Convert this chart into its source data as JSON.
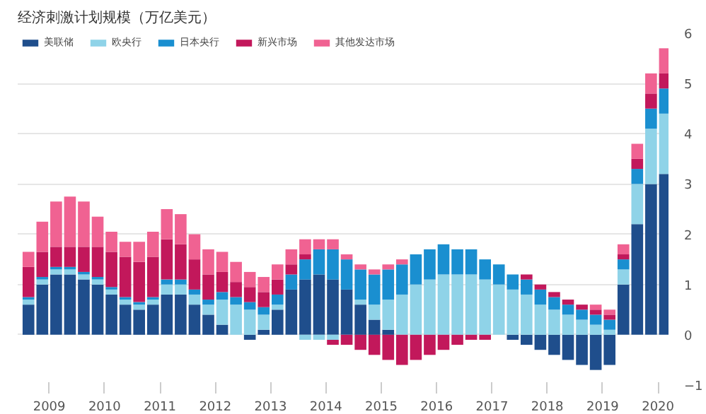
{
  "chart_data": {
    "type": "bar",
    "title": "经济刺激计划规模（万亿美元）",
    "stacked": true,
    "legend": "top left",
    "grid": "y",
    "x": [
      2008.625,
      2008.875,
      2009.125,
      2009.375,
      2009.625,
      2009.875,
      2010.125,
      2010.375,
      2010.625,
      2010.875,
      2011.125,
      2011.375,
      2011.625,
      2011.875,
      2012.125,
      2012.375,
      2012.625,
      2012.875,
      2013.125,
      2013.375,
      2013.625,
      2013.875,
      2014.125,
      2014.375,
      2014.625,
      2014.875,
      2015.125,
      2015.375,
      2015.625,
      2015.875,
      2016.125,
      2016.375,
      2016.625,
      2016.875,
      2017.125,
      2017.375,
      2017.625,
      2017.875,
      2018.125,
      2018.375,
      2018.625,
      2018.875,
      2019.125,
      2019.375,
      2019.625,
      2019.875,
      2020.125
    ],
    "series": [
      {
        "name": "美联储",
        "color": "#1f4e8c",
        "values": [
          0.6,
          1.0,
          1.2,
          1.2,
          1.1,
          1.0,
          0.8,
          0.6,
          0.5,
          0.6,
          0.8,
          0.8,
          0.6,
          0.4,
          0.2,
          0.0,
          -0.1,
          0.1,
          0.5,
          0.9,
          1.1,
          1.2,
          1.1,
          0.9,
          0.6,
          0.3,
          0.1,
          0.0,
          0.0,
          0.0,
          0.0,
          0.0,
          0.0,
          0.0,
          0.0,
          -0.1,
          -0.2,
          -0.3,
          -0.4,
          -0.5,
          -0.6,
          -0.7,
          -0.6,
          1.0,
          2.2,
          3.0,
          3.2
        ]
      },
      {
        "name": "欧央行",
        "color": "#8fd3e8",
        "values": [
          0.1,
          0.1,
          0.1,
          0.1,
          0.1,
          0.1,
          0.1,
          0.1,
          0.1,
          0.1,
          0.2,
          0.2,
          0.2,
          0.2,
          0.5,
          0.6,
          0.5,
          0.3,
          0.1,
          0.0,
          -0.1,
          -0.1,
          -0.1,
          0.0,
          0.1,
          0.3,
          0.6,
          0.8,
          1.0,
          1.1,
          1.2,
          1.2,
          1.2,
          1.1,
          1.0,
          0.9,
          0.8,
          0.6,
          0.5,
          0.4,
          0.3,
          0.2,
          0.1,
          0.3,
          0.8,
          1.1,
          1.2
        ]
      },
      {
        "name": "日本央行",
        "color": "#1a8fd0",
        "values": [
          0.05,
          0.05,
          0.05,
          0.05,
          0.05,
          0.05,
          0.05,
          0.05,
          0.05,
          0.05,
          0.1,
          0.1,
          0.1,
          0.1,
          0.15,
          0.15,
          0.15,
          0.15,
          0.2,
          0.3,
          0.4,
          0.5,
          0.6,
          0.6,
          0.6,
          0.6,
          0.6,
          0.6,
          0.6,
          0.6,
          0.6,
          0.5,
          0.5,
          0.4,
          0.4,
          0.3,
          0.3,
          0.3,
          0.25,
          0.2,
          0.2,
          0.2,
          0.2,
          0.2,
          0.3,
          0.4,
          0.5
        ]
      },
      {
        "name": "新兴市场",
        "color": "#c2185b",
        "values": [
          0.6,
          0.5,
          0.4,
          0.4,
          0.5,
          0.6,
          0.7,
          0.8,
          0.8,
          0.8,
          0.8,
          0.7,
          0.6,
          0.5,
          0.4,
          0.3,
          0.3,
          0.3,
          0.3,
          0.2,
          0.1,
          0.0,
          -0.1,
          -0.2,
          -0.3,
          -0.4,
          -0.5,
          -0.6,
          -0.5,
          -0.4,
          -0.3,
          -0.2,
          -0.1,
          -0.1,
          0.0,
          0.0,
          0.1,
          0.1,
          0.1,
          0.1,
          0.1,
          0.1,
          0.1,
          0.1,
          0.2,
          0.3,
          0.3
        ]
      },
      {
        "name": "其他发达市场",
        "color": "#f06292",
        "values": [
          0.3,
          0.6,
          0.9,
          1.0,
          0.9,
          0.6,
          0.4,
          0.3,
          0.4,
          0.5,
          0.6,
          0.6,
          0.5,
          0.5,
          0.4,
          0.4,
          0.3,
          0.3,
          0.3,
          0.3,
          0.3,
          0.2,
          0.2,
          0.1,
          0.1,
          0.1,
          0.1,
          0.1,
          0.0,
          0.0,
          0.0,
          0.0,
          0.0,
          0.0,
          0.0,
          0.0,
          0.0,
          0.0,
          0.0,
          0.0,
          0.0,
          0.1,
          0.1,
          0.2,
          0.3,
          0.4,
          0.5
        ]
      }
    ],
    "xlim": [
      2008.43,
      2020.19
    ],
    "xticks": [
      2009,
      2010,
      2011,
      2012,
      2013,
      2014,
      2015,
      2016,
      2017,
      2018,
      2019,
      2020
    ],
    "ylim": [
      -1,
      6
    ],
    "yticks": [
      -1,
      0,
      1,
      2,
      3,
      4,
      5,
      6
    ]
  }
}
